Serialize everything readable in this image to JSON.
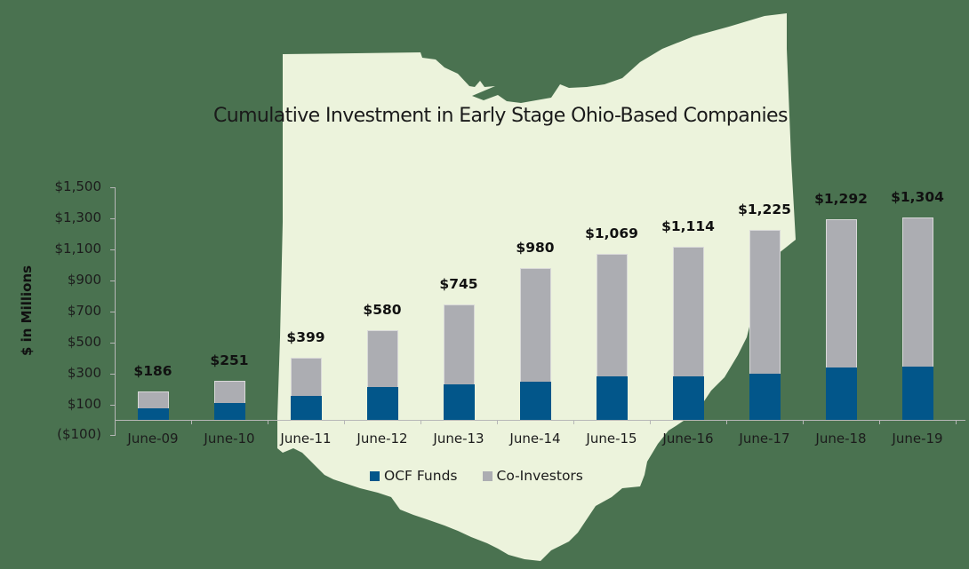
{
  "background": {
    "outer_color": "#4a7250",
    "map_color": "#ecf3dc",
    "map_shape": "Ohio state outline"
  },
  "chart_data": {
    "type": "bar",
    "stacked": true,
    "title": "Cumulative Investment in Early Stage Ohio-Based Companies",
    "xlabel": "",
    "ylabel": "$ in Millions",
    "ylim": [
      -100,
      1500
    ],
    "yticks": [
      "$1,500",
      "$1,300",
      "$1,100",
      "$900",
      "$700",
      "$500",
      "$300",
      "$100",
      "($100)"
    ],
    "ytick_values": [
      1500,
      1300,
      1100,
      900,
      700,
      500,
      300,
      100,
      -100
    ],
    "grid": false,
    "legend_position": "bottom",
    "categories": [
      "June-09",
      "June-10",
      "June-11",
      "June-12",
      "June-13",
      "June-14",
      "June-15",
      "June-16",
      "June-17",
      "June-18",
      "June-19"
    ],
    "totals": [
      186,
      251,
      399,
      580,
      745,
      980,
      1069,
      1114,
      1225,
      1292,
      1304
    ],
    "total_labels": [
      "$186",
      "$251",
      "$399",
      "$580",
      "$745",
      "$980",
      "$1,069",
      "$1,114",
      "$1,225",
      "$1,292",
      "$1,304"
    ],
    "series": [
      {
        "name": "OCF Funds",
        "color": "#02568a",
        "values": [
          75,
          110,
          155,
          210,
          230,
          245,
          280,
          280,
          295,
          335,
          345
        ]
      },
      {
        "name": "Co-Investors",
        "color": "#acadb2",
        "values": [
          111,
          141,
          244,
          370,
          515,
          735,
          789,
          834,
          930,
          957,
          959
        ]
      }
    ]
  }
}
